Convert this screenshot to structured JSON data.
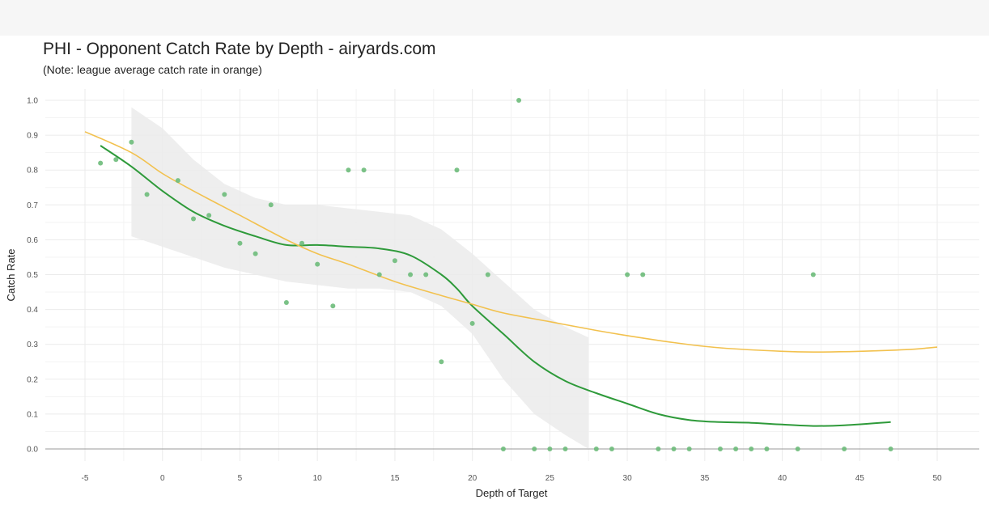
{
  "chart_data": {
    "type": "scatter",
    "title": "PHI - Opponent Catch Rate by Depth - airyards.com",
    "subtitle": "(Note: league average catch rate in orange)",
    "xlabel": "Depth of Target",
    "ylabel": "Catch Rate",
    "xlim": [
      -5,
      50
    ],
    "ylim": [
      0,
      1
    ],
    "x_ticks": [
      -5,
      0,
      5,
      10,
      15,
      20,
      25,
      30,
      35,
      40,
      45,
      50
    ],
    "y_ticks": [
      0.0,
      0.1,
      0.2,
      0.3,
      0.4,
      0.5,
      0.6,
      0.7,
      0.8,
      0.9,
      1.0
    ],
    "grid": true,
    "colors": {
      "points": "#6dbb7a",
      "team_smooth": "#2e9a3a",
      "league_average": "#f2c14e",
      "confidence_band": "#ebebeb",
      "grid": "#ebebeb",
      "zero_line": "#9a9a9a"
    },
    "points": [
      {
        "x": -4,
        "y": 0.82
      },
      {
        "x": -3,
        "y": 0.83
      },
      {
        "x": -2,
        "y": 0.88
      },
      {
        "x": -1,
        "y": 0.73
      },
      {
        "x": 1,
        "y": 0.77
      },
      {
        "x": 2,
        "y": 0.66
      },
      {
        "x": 3,
        "y": 0.67
      },
      {
        "x": 4,
        "y": 0.73
      },
      {
        "x": 5,
        "y": 0.59
      },
      {
        "x": 6,
        "y": 0.56
      },
      {
        "x": 7,
        "y": 0.7
      },
      {
        "x": 8,
        "y": 0.42
      },
      {
        "x": 9,
        "y": 0.59
      },
      {
        "x": 10,
        "y": 0.53
      },
      {
        "x": 11,
        "y": 0.41
      },
      {
        "x": 12,
        "y": 0.8
      },
      {
        "x": 13,
        "y": 0.8
      },
      {
        "x": 14,
        "y": 0.5
      },
      {
        "x": 15,
        "y": 0.54
      },
      {
        "x": 16,
        "y": 0.5
      },
      {
        "x": 17,
        "y": 0.5
      },
      {
        "x": 18,
        "y": 0.25
      },
      {
        "x": 19,
        "y": 0.8
      },
      {
        "x": 20,
        "y": 0.36
      },
      {
        "x": 21,
        "y": 0.5
      },
      {
        "x": 22,
        "y": 0.0
      },
      {
        "x": 23,
        "y": 1.0
      },
      {
        "x": 24,
        "y": 0.0
      },
      {
        "x": 25,
        "y": 0.0
      },
      {
        "x": 26,
        "y": 0.0
      },
      {
        "x": 28,
        "y": 0.0
      },
      {
        "x": 29,
        "y": 0.0
      },
      {
        "x": 30,
        "y": 0.5
      },
      {
        "x": 31,
        "y": 0.5
      },
      {
        "x": 32,
        "y": 0.0
      },
      {
        "x": 33,
        "y": 0.0
      },
      {
        "x": 34,
        "y": 0.0
      },
      {
        "x": 36,
        "y": 0.0
      },
      {
        "x": 37,
        "y": 0.0
      },
      {
        "x": 38,
        "y": 0.0
      },
      {
        "x": 39,
        "y": 0.0
      },
      {
        "x": 41,
        "y": 0.0
      },
      {
        "x": 42,
        "y": 0.5
      },
      {
        "x": 44,
        "y": 0.0
      },
      {
        "x": 47,
        "y": 0.0
      }
    ],
    "series": [
      {
        "values": [
          {
            "x": -4,
            "y": 0.87
          },
          {
            "x": -2,
            "y": 0.81
          },
          {
            "x": 0,
            "y": 0.74
          },
          {
            "x": 2,
            "y": 0.68
          },
          {
            "x": 4,
            "y": 0.64
          },
          {
            "x": 6,
            "y": 0.61
          },
          {
            "x": 8,
            "y": 0.585
          },
          {
            "x": 10,
            "y": 0.585
          },
          {
            "x": 12,
            "y": 0.58
          },
          {
            "x": 14,
            "y": 0.575
          },
          {
            "x": 16,
            "y": 0.555
          },
          {
            "x": 18,
            "y": 0.5
          },
          {
            "x": 19,
            "y": 0.46
          },
          {
            "x": 20,
            "y": 0.41
          },
          {
            "x": 22,
            "y": 0.33
          },
          {
            "x": 24,
            "y": 0.25
          },
          {
            "x": 26,
            "y": 0.195
          },
          {
            "x": 28,
            "y": 0.16
          },
          {
            "x": 30,
            "y": 0.13
          },
          {
            "x": 32,
            "y": 0.1
          },
          {
            "x": 34,
            "y": 0.083
          },
          {
            "x": 36,
            "y": 0.077
          },
          {
            "x": 38,
            "y": 0.075
          },
          {
            "x": 40,
            "y": 0.07
          },
          {
            "x": 42,
            "y": 0.066
          },
          {
            "x": 44,
            "y": 0.068
          },
          {
            "x": 47,
            "y": 0.077
          }
        ]
      },
      {
        "values": [
          {
            "x": -5,
            "y": 0.91
          },
          {
            "x": -2,
            "y": 0.85
          },
          {
            "x": 0,
            "y": 0.79
          },
          {
            "x": 2,
            "y": 0.74
          },
          {
            "x": 5,
            "y": 0.67
          },
          {
            "x": 8,
            "y": 0.6
          },
          {
            "x": 10,
            "y": 0.56
          },
          {
            "x": 12,
            "y": 0.53
          },
          {
            "x": 15,
            "y": 0.48
          },
          {
            "x": 18,
            "y": 0.44
          },
          {
            "x": 20,
            "y": 0.415
          },
          {
            "x": 22,
            "y": 0.39
          },
          {
            "x": 25,
            "y": 0.365
          },
          {
            "x": 28,
            "y": 0.34
          },
          {
            "x": 30,
            "y": 0.325
          },
          {
            "x": 33,
            "y": 0.305
          },
          {
            "x": 36,
            "y": 0.29
          },
          {
            "x": 40,
            "y": 0.28
          },
          {
            "x": 42,
            "y": 0.278
          },
          {
            "x": 45,
            "y": 0.28
          },
          {
            "x": 48,
            "y": 0.285
          },
          {
            "x": 50,
            "y": 0.292
          }
        ]
      }
    ],
    "band": {
      "x": [
        -2,
        0,
        2,
        4,
        6,
        8,
        10,
        12,
        14,
        16,
        18,
        20,
        22,
        24,
        26,
        27.5
      ],
      "upper": [
        0.98,
        0.92,
        0.83,
        0.76,
        0.72,
        0.7,
        0.7,
        0.69,
        0.68,
        0.67,
        0.63,
        0.56,
        0.48,
        0.4,
        0.35,
        0.32
      ],
      "lower": [
        0.61,
        0.58,
        0.55,
        0.52,
        0.5,
        0.48,
        0.47,
        0.46,
        0.46,
        0.45,
        0.41,
        0.33,
        0.2,
        0.1,
        0.04,
        0.0
      ]
    }
  }
}
